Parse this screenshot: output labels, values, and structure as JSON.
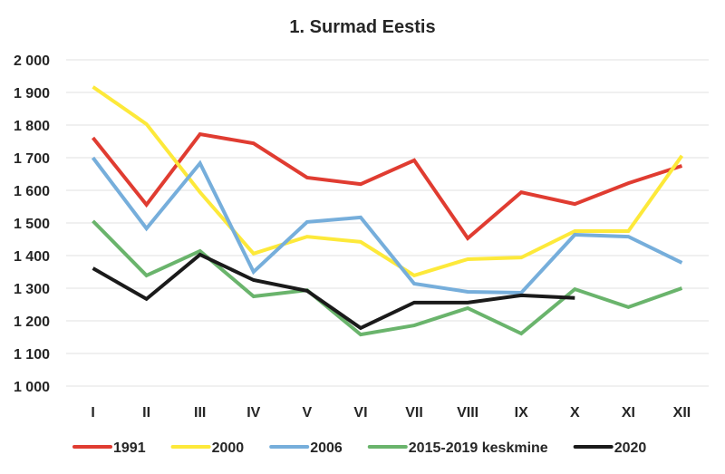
{
  "chart_data": {
    "type": "line",
    "title": "1. Surmad Eestis",
    "xlabel": "",
    "ylabel": "",
    "categories": [
      "I",
      "II",
      "III",
      "IV",
      "V",
      "VI",
      "VII",
      "VIII",
      "IX",
      "X",
      "XI",
      "XII"
    ],
    "ylim": [
      1000,
      2000
    ],
    "yticks": [
      1000,
      1100,
      1200,
      1300,
      1400,
      1500,
      1600,
      1700,
      1800,
      1900,
      2000
    ],
    "ytick_labels": [
      "1 000",
      "1 100",
      "1 200",
      "1 300",
      "1 400",
      "1 500",
      "1 600",
      "1 700",
      "1 800",
      "1 900",
      "2 000"
    ],
    "grid": true,
    "legend_position": "bottom",
    "series": [
      {
        "name": "1991",
        "color": "#e03c31",
        "values": [
          1761,
          1556,
          1772,
          1744,
          1639,
          1619,
          1692,
          1453,
          1594,
          1558,
          1622,
          1675
        ]
      },
      {
        "name": "2000",
        "color": "#fde93a",
        "values": [
          1917,
          1803,
          1594,
          1406,
          1458,
          1442,
          1339,
          1389,
          1394,
          1475,
          1475,
          1706
        ]
      },
      {
        "name": "2006",
        "color": "#76aedb",
        "values": [
          1700,
          1483,
          1683,
          1350,
          1503,
          1517,
          1314,
          1289,
          1286,
          1464,
          1458,
          1378
        ]
      },
      {
        "name": "2015-2019 keskmine",
        "color": "#6ab46c",
        "values": [
          1506,
          1339,
          1414,
          1275,
          1294,
          1158,
          1186,
          1239,
          1161,
          1297,
          1242,
          1300
        ]
      },
      {
        "name": "2020",
        "color": "#1a1a1a",
        "values": [
          1361,
          1267,
          1403,
          1325,
          1292,
          1178,
          1256,
          1256,
          1278,
          1270,
          null,
          null
        ]
      }
    ]
  }
}
